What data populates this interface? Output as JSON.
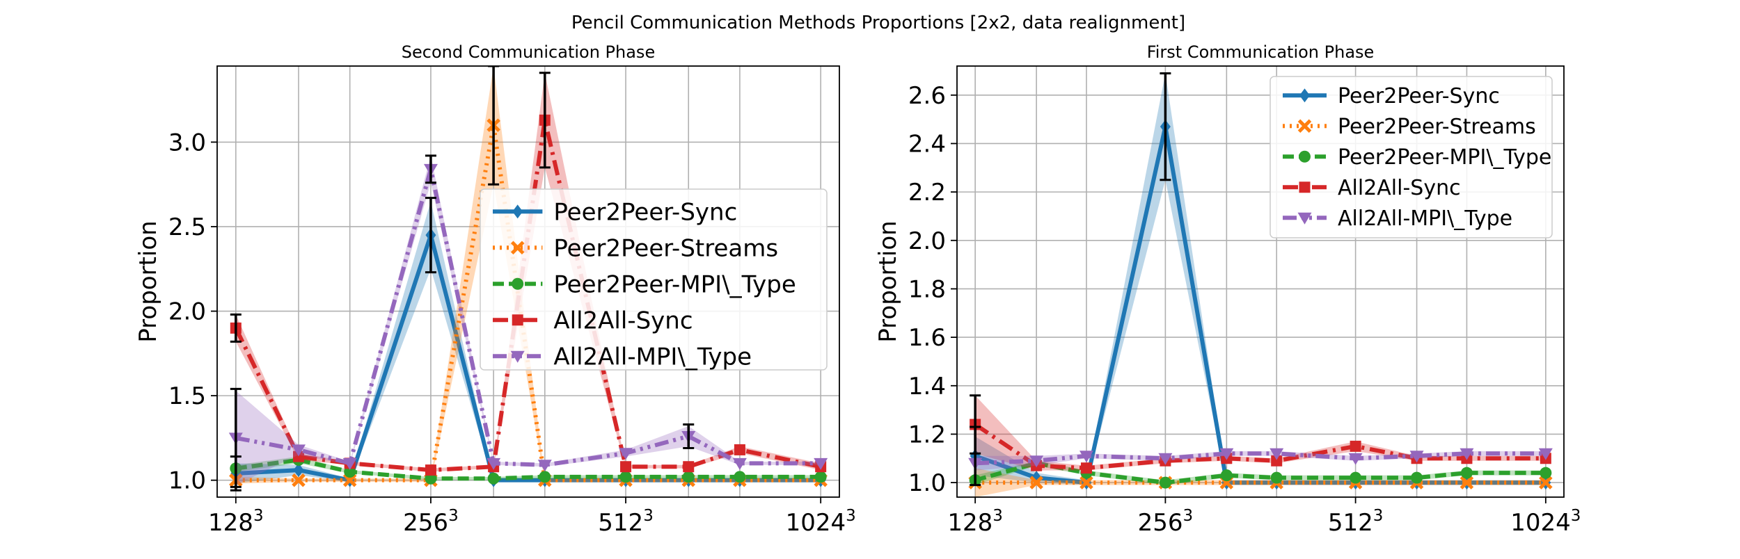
{
  "figure": {
    "suptitle": "Pencil Communication Methods Proportions [2x2, data realignment]"
  },
  "colors": {
    "Peer2Peer-Sync": "#1f77b4",
    "Peer2Peer-Streams": "#ff7f0e",
    "Peer2Peer-MPI\\_Type": "#2ca02c",
    "All2All-Sync": "#d62728",
    "All2All-MPI\\_Type": "#9467bd"
  },
  "chart_data": [
    {
      "type": "line",
      "title": "Second Communication Phase",
      "ylabel": "Proportion",
      "xlabel": "",
      "x": [
        128,
        160,
        192,
        256,
        320,
        384,
        512,
        640,
        768,
        1024
      ],
      "xticks": [
        {
          "value": 128,
          "base": "128",
          "exp": "3"
        },
        {
          "value": 256,
          "base": "256",
          "exp": "3"
        },
        {
          "value": 512,
          "base": "512",
          "exp": "3"
        },
        {
          "value": 1024,
          "base": "1024",
          "exp": "3"
        }
      ],
      "yticks": [
        "1.0",
        "1.5",
        "2.0",
        "2.5",
        "3.0"
      ],
      "ylim": [
        0.9,
        3.45
      ],
      "grid": true,
      "legend_position": "center-right",
      "series": [
        {
          "name": "Peer2Peer-Sync",
          "marker": "diamond",
          "dash": "solid",
          "values": [
            1.04,
            1.06,
            1.0,
            2.45,
            1.0,
            1.0,
            1.0,
            1.0,
            1.0,
            1.0
          ],
          "band": [
            0.06,
            0.03,
            0.01,
            0.2,
            0.01,
            0.01,
            0.01,
            0.01,
            0.01,
            0.01
          ],
          "errors": [
            0.1,
            0.0,
            0.0,
            0.22,
            0.0,
            0.0,
            0.0,
            0.0,
            0.0,
            0.0
          ]
        },
        {
          "name": "Peer2Peer-Streams",
          "marker": "x",
          "dash": "dotted",
          "values": [
            1.0,
            1.0,
            1.0,
            1.0,
            3.1,
            1.0,
            1.0,
            1.0,
            1.0,
            1.0
          ],
          "band": [
            0.02,
            0.01,
            0.01,
            0.01,
            0.35,
            0.01,
            0.01,
            0.01,
            0.01,
            0.01
          ],
          "errors": [
            0.0,
            0.0,
            0.0,
            0.0,
            0.35,
            0.0,
            0.0,
            0.0,
            0.0,
            0.0
          ]
        },
        {
          "name": "Peer2Peer-MPI\\_Type",
          "marker": "circle",
          "dash": "dashed",
          "values": [
            1.07,
            1.12,
            1.05,
            1.01,
            1.01,
            1.02,
            1.02,
            1.02,
            1.02,
            1.02
          ],
          "band": [
            0.02,
            0.02,
            0.01,
            0.01,
            0.01,
            0.01,
            0.01,
            0.01,
            0.01,
            0.01
          ],
          "errors": [
            0.0,
            0.0,
            0.0,
            0.0,
            0.0,
            0.0,
            0.0,
            0.0,
            0.0,
            0.0
          ]
        },
        {
          "name": "All2All-Sync",
          "marker": "square",
          "dash": "dashdot",
          "values": [
            1.9,
            1.14,
            1.1,
            1.06,
            1.08,
            3.13,
            1.08,
            1.08,
            1.18,
            1.08
          ],
          "band": [
            0.08,
            0.02,
            0.01,
            0.01,
            0.01,
            0.28,
            0.01,
            0.01,
            0.02,
            0.02
          ],
          "errors": [
            0.08,
            0.0,
            0.0,
            0.0,
            0.0,
            0.28,
            0.0,
            0.0,
            0.0,
            0.0
          ]
        },
        {
          "name": "All2All-MPI\\_Type",
          "marker": "triangle-down",
          "dash": "dashdotdot",
          "values": [
            1.25,
            1.18,
            1.1,
            2.84,
            1.1,
            1.09,
            1.16,
            1.26,
            1.1,
            1.1
          ],
          "band": [
            0.28,
            0.03,
            0.01,
            0.08,
            0.01,
            0.01,
            0.02,
            0.06,
            0.01,
            0.01
          ],
          "errors": [
            0.29,
            0.0,
            0.0,
            0.08,
            0.0,
            0.0,
            0.0,
            0.07,
            0.0,
            0.0
          ]
        }
      ]
    },
    {
      "type": "line",
      "title": "First Communication Phase",
      "ylabel": "Proportion",
      "xlabel": "",
      "x": [
        128,
        160,
        192,
        256,
        320,
        384,
        512,
        640,
        768,
        1024
      ],
      "xticks": [
        {
          "value": 128,
          "base": "128",
          "exp": "3"
        },
        {
          "value": 256,
          "base": "256",
          "exp": "3"
        },
        {
          "value": 512,
          "base": "512",
          "exp": "3"
        },
        {
          "value": 1024,
          "base": "1024",
          "exp": "3"
        }
      ],
      "yticks": [
        "1.0",
        "1.2",
        "1.4",
        "1.6",
        "1.8",
        "2.0",
        "2.2",
        "2.4",
        "2.6"
      ],
      "ylim": [
        0.94,
        2.72
      ],
      "grid": true,
      "legend_position": "upper-right",
      "series": [
        {
          "name": "Peer2Peer-Sync",
          "marker": "diamond",
          "dash": "solid",
          "values": [
            1.11,
            1.02,
            1.0,
            2.47,
            1.0,
            1.0,
            1.0,
            1.0,
            1.0,
            1.0
          ],
          "band": [
            0.08,
            0.02,
            0.01,
            0.22,
            0.01,
            0.01,
            0.01,
            0.01,
            0.01,
            0.01
          ],
          "errors": [
            0.12,
            0.0,
            0.0,
            0.22,
            0.0,
            0.0,
            0.0,
            0.0,
            0.0,
            0.0
          ]
        },
        {
          "name": "Peer2Peer-Streams",
          "marker": "x",
          "dash": "dotted",
          "values": [
            1.0,
            1.0,
            1.0,
            1.0,
            1.0,
            1.0,
            1.0,
            1.0,
            1.0,
            1.0
          ],
          "band": [
            0.06,
            0.01,
            0.01,
            0.01,
            0.01,
            0.01,
            0.01,
            0.01,
            0.01,
            0.01
          ],
          "errors": [
            0.0,
            0.0,
            0.0,
            0.0,
            0.0,
            0.0,
            0.0,
            0.0,
            0.0,
            0.0
          ]
        },
        {
          "name": "Peer2Peer-MPI\\_Type",
          "marker": "circle",
          "dash": "dashed",
          "values": [
            1.01,
            1.08,
            1.04,
            1.0,
            1.03,
            1.02,
            1.02,
            1.02,
            1.04,
            1.04
          ],
          "band": [
            0.02,
            0.01,
            0.01,
            0.01,
            0.01,
            0.01,
            0.01,
            0.01,
            0.01,
            0.01
          ],
          "errors": [
            0.0,
            0.0,
            0.0,
            0.0,
            0.0,
            0.0,
            0.0,
            0.0,
            0.0,
            0.0
          ]
        },
        {
          "name": "All2All-Sync",
          "marker": "square",
          "dash": "dashdot",
          "values": [
            1.24,
            1.07,
            1.06,
            1.09,
            1.1,
            1.09,
            1.15,
            1.1,
            1.1,
            1.1
          ],
          "band": [
            0.12,
            0.02,
            0.01,
            0.01,
            0.01,
            0.01,
            0.02,
            0.01,
            0.01,
            0.01
          ],
          "errors": [
            0.12,
            0.0,
            0.0,
            0.0,
            0.0,
            0.0,
            0.0,
            0.0,
            0.0,
            0.0
          ]
        },
        {
          "name": "All2All-MPI\\_Type",
          "marker": "triangle-down",
          "dash": "dashdotdot",
          "values": [
            1.08,
            1.09,
            1.11,
            1.1,
            1.12,
            1.12,
            1.1,
            1.11,
            1.12,
            1.12
          ],
          "band": [
            0.03,
            0.02,
            0.01,
            0.01,
            0.01,
            0.01,
            0.01,
            0.01,
            0.01,
            0.01
          ],
          "errors": [
            0.0,
            0.0,
            0.0,
            0.0,
            0.0,
            0.0,
            0.0,
            0.0,
            0.0,
            0.0
          ]
        }
      ]
    }
  ]
}
